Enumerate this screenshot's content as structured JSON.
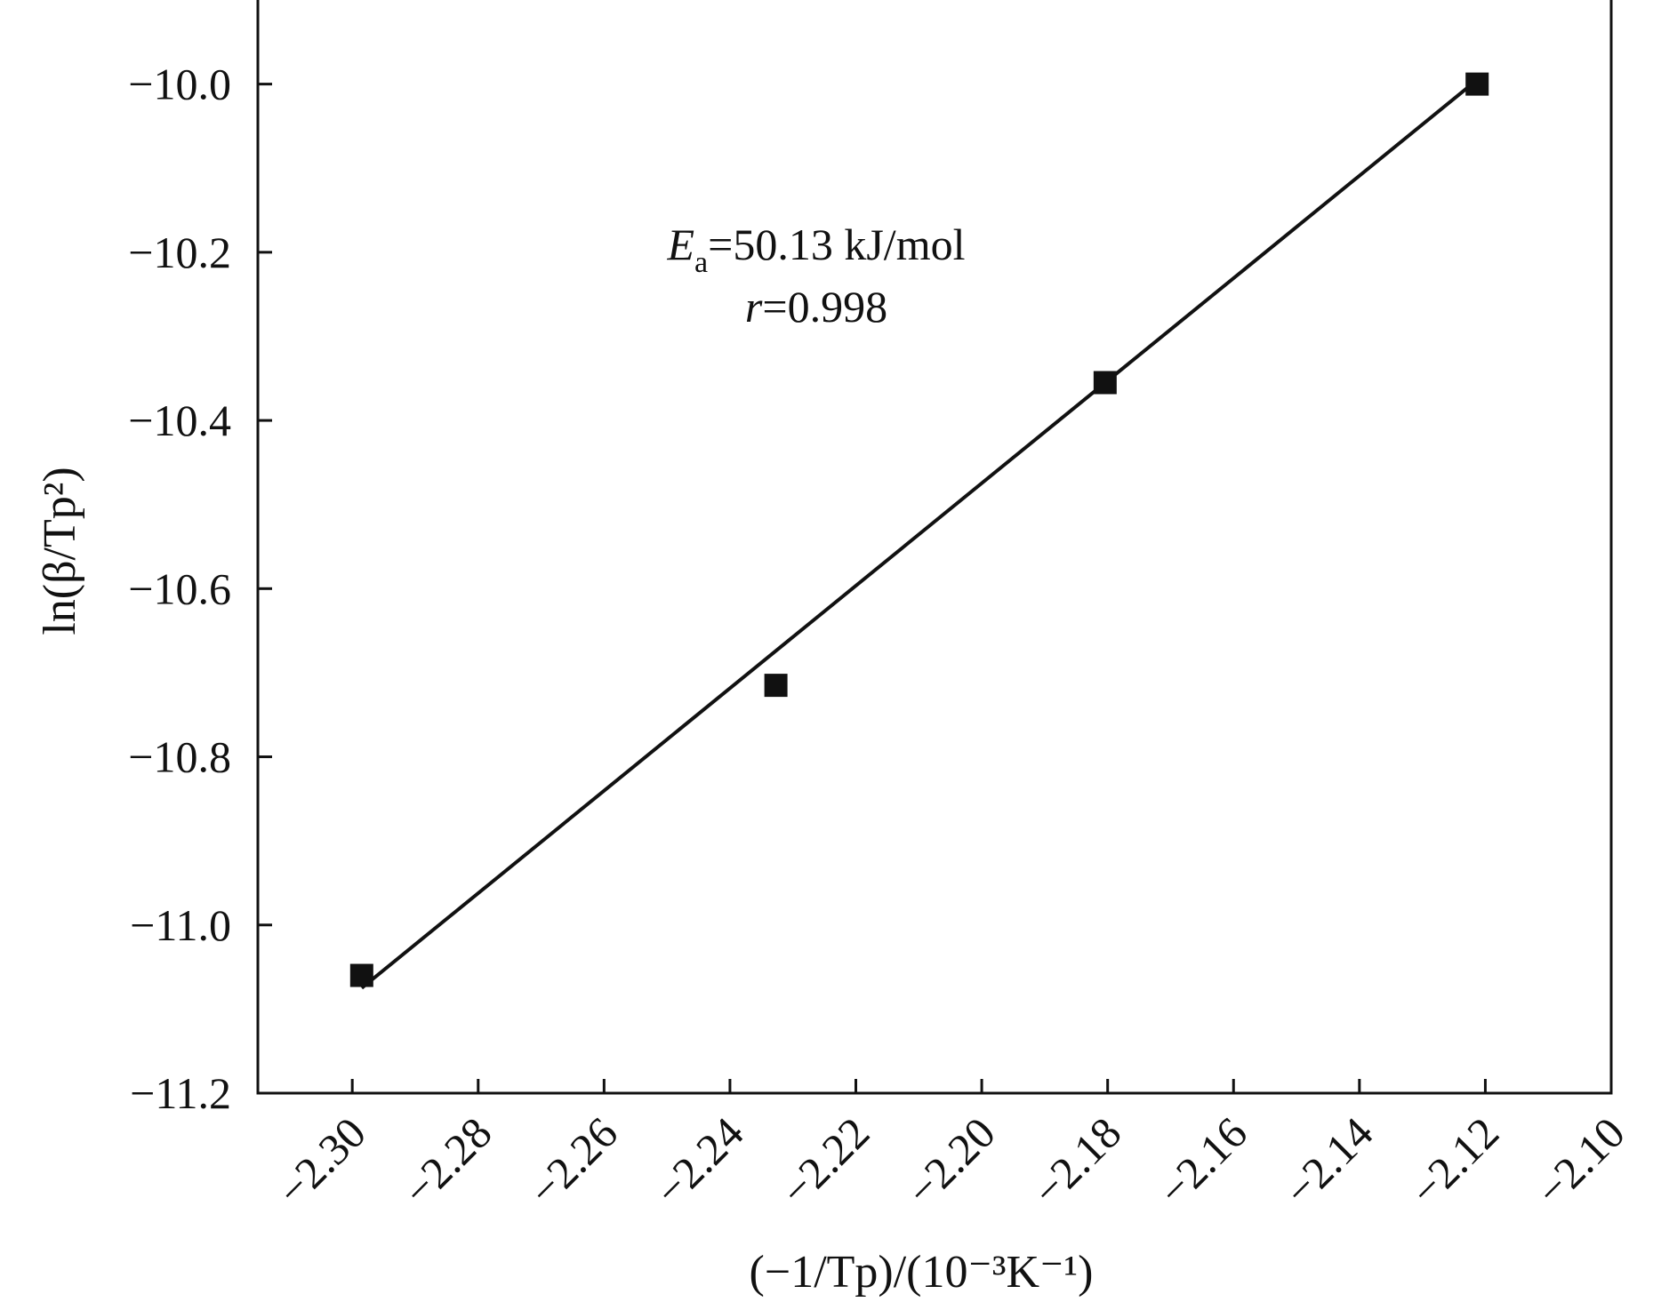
{
  "chart_data": {
    "type": "scatter",
    "xlabel": "(−1/Tp)/(10⁻³K⁻¹)",
    "ylabel": "ln(β/Tp²)",
    "xlim": [
      -2.315,
      -2.1
    ],
    "ylim": [
      -11.2,
      -9.9
    ],
    "xticks": [
      -2.3,
      -2.28,
      -2.26,
      -2.24,
      -2.22,
      -2.2,
      -2.18,
      -2.16,
      -2.14,
      -2.12,
      -2.1
    ],
    "xtick_labels": [
      "−2.30",
      "−2.28",
      "−2.26",
      "−2.24",
      "−2.22",
      "−2.20",
      "−2.18",
      "−2.16",
      "−2.14",
      "−2.12",
      "−2.10"
    ],
    "yticks": [
      -10.0,
      -10.2,
      -10.4,
      -10.6,
      -10.8,
      -11.0,
      -11.2
    ],
    "ytick_labels": [
      "−10.0",
      "−10.2",
      "−10.4",
      "−10.6",
      "−10.8",
      "−11.0",
      "−11.2"
    ],
    "grid": false,
    "points": [
      {
        "x": -2.2985,
        "y": -11.06
      },
      {
        "x": -2.2327,
        "y": -10.715
      },
      {
        "x": -2.1804,
        "y": -10.355
      },
      {
        "x": -2.1213,
        "y": -10.0
      }
    ],
    "fit_line": {
      "x": [
        -2.2985,
        -2.1213
      ],
      "y": [
        -11.075,
        -9.995
      ]
    },
    "annotation": {
      "ea_symbol": "E",
      "ea_sub": "a",
      "ea_text": "=50.13 kJ/mol",
      "r_symbol": "r",
      "r_text": "=0.998"
    },
    "colors": {
      "marker": "#111111",
      "line": "#111111",
      "axis": "#111111"
    }
  }
}
